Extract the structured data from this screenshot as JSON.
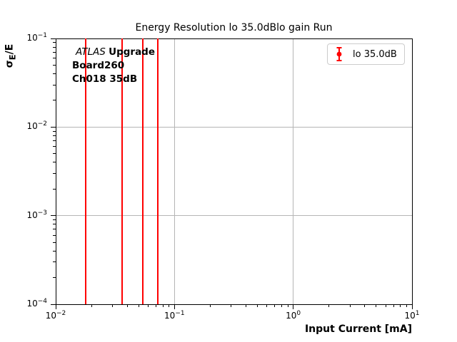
{
  "figure": {
    "ylabel_sigma": "σ",
    "ylabel_sub": "E",
    "ylabel_rest": "/E",
    "annotation": {
      "line1_italic": "ATLAS",
      "line1_bold": "Upgrade",
      "line2": "Board260",
      "line3": "Ch018 35dB"
    },
    "legend": {
      "label": "lo 35.0dB"
    }
  },
  "chart_data": {
    "type": "scatter",
    "subtype": "errorbar",
    "title": "Energy Resolution lo 35.0dBlo gain Run",
    "xlabel": "Input Current [mA]",
    "ylabel": "σ_E/E",
    "x_scale": "log",
    "y_scale": "log",
    "xlim": [
      0.01,
      10
    ],
    "ylim": [
      0.0001,
      0.1
    ],
    "x_tick_exponents": [
      -2,
      -1,
      0,
      1
    ],
    "y_tick_exponents": [
      -1,
      -2,
      -3,
      -4
    ],
    "grid": true,
    "legend_position": "upper right",
    "legend_entries": [
      "lo 35.0dB"
    ],
    "annotations": [
      "ATLAS Upgrade",
      "Board260",
      "Ch018 35dB"
    ],
    "series": [
      {
        "name": "lo 35.0dB",
        "color": "#ff0000",
        "marker": "circle-with-errorbar",
        "x": [
          0.018,
          0.036,
          0.054,
          0.072
        ],
        "y_error_span": "full-axis",
        "note": "each data point renders as a vertical red error bar spanning the whole visible y range 1e-4 to 1e-1"
      }
    ],
    "colors": {
      "series": "#ff0000",
      "grid": "#b5b5b5",
      "axes": "#000000",
      "legend_border": "#cccccc"
    }
  }
}
